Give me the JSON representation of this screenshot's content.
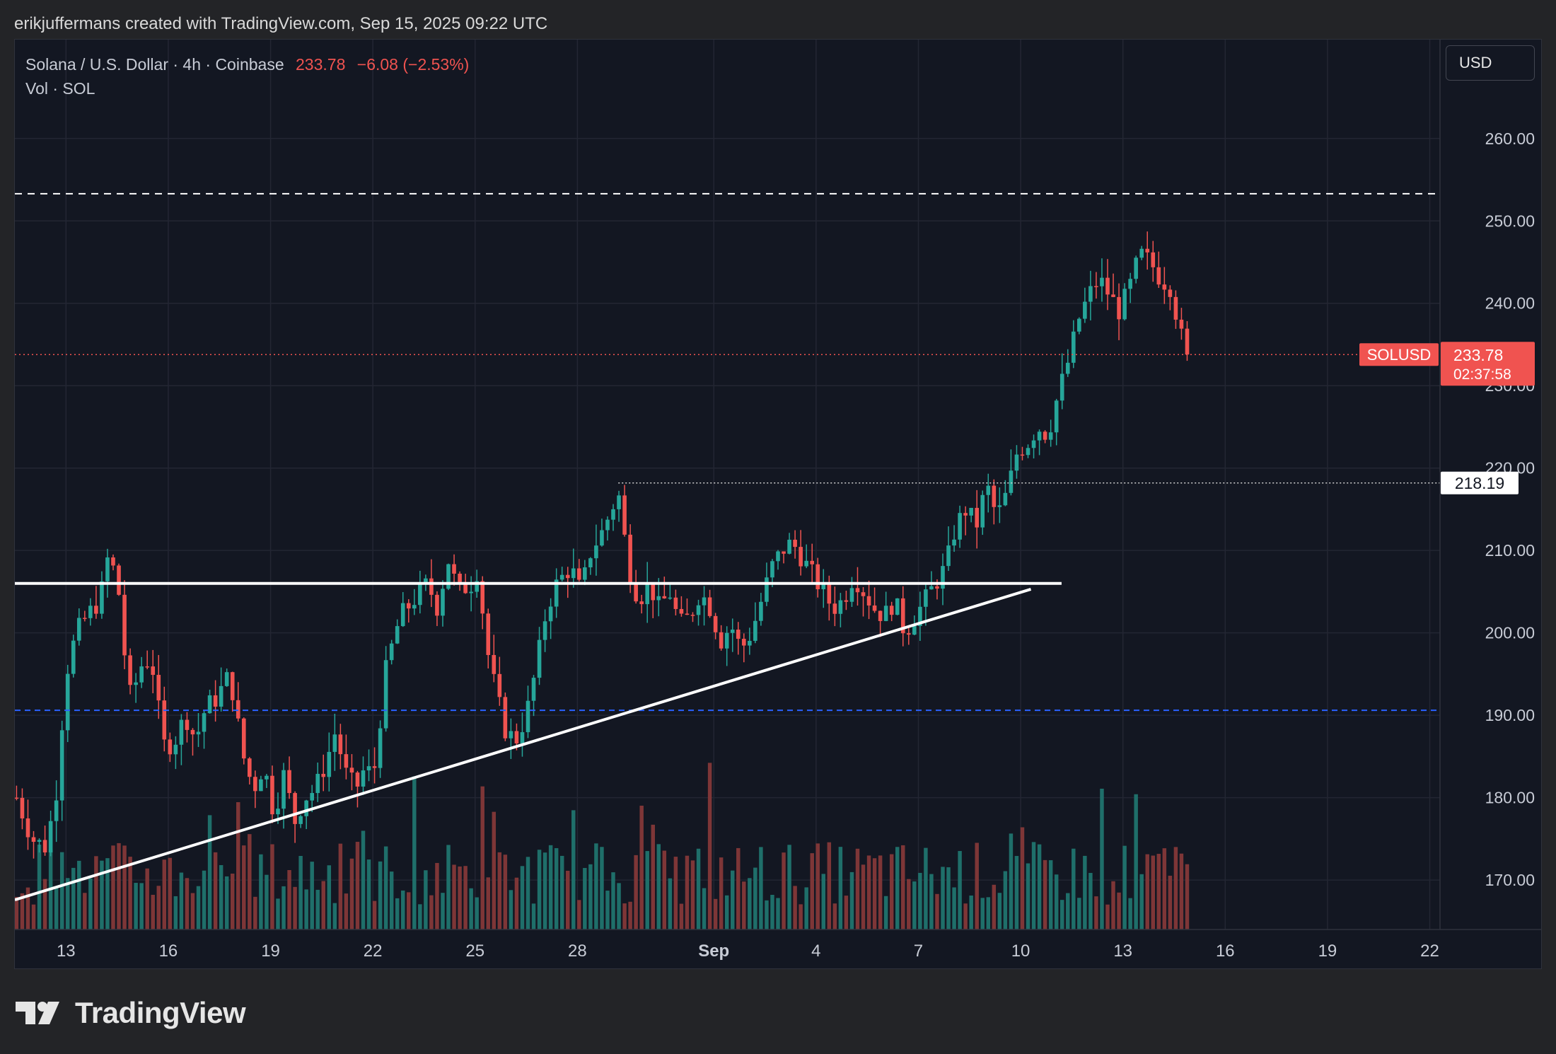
{
  "credit": "erikjuffermans created with TradingView.com, Sep 15, 2025 09:22 UTC",
  "legend": {
    "symbol": "Solana / U.S. Dollar · 4h · Coinbase",
    "price": "233.78",
    "change": "−6.08 (−2.53%)",
    "volume_label": "Vol · SOL"
  },
  "currency_button": "USD",
  "brand": "TradingView",
  "colors": {
    "up": "#26a69a",
    "down": "#f05350",
    "up_volume": "#1f6f6a",
    "down_volume": "#7e3637",
    "background": "#131722",
    "grid": "#232633",
    "trendline": "#ffffff",
    "resistance_dashed": "#ffffff",
    "support_dashed": "#2962ff"
  },
  "chart_data": {
    "type": "candlestick",
    "interval": "4h",
    "y_axis": {
      "min": 164,
      "max": 272,
      "ticks": [
        170,
        180,
        190,
        200,
        210,
        220,
        230,
        240,
        250,
        260
      ],
      "side": "right"
    },
    "x_axis": {
      "labels": [
        {
          "day": 13,
          "text": "13"
        },
        {
          "day": 16,
          "text": "16"
        },
        {
          "day": 19,
          "text": "19"
        },
        {
          "day": 22,
          "text": "22"
        },
        {
          "day": 25,
          "text": "25"
        },
        {
          "day": 28,
          "text": "28"
        },
        {
          "day": 32,
          "text": "Sep",
          "bold": true
        },
        {
          "day": 35,
          "text": "4"
        },
        {
          "day": 38,
          "text": "7"
        },
        {
          "day": 41,
          "text": "10"
        },
        {
          "day": 44,
          "text": "13"
        },
        {
          "day": 47,
          "text": "16"
        },
        {
          "day": 50,
          "text": "19"
        },
        {
          "day": 53,
          "text": "22"
        }
      ],
      "day_min": 11.5,
      "day_max": 53.3
    },
    "anchors": [
      [
        11.55,
        180
      ],
      [
        12.0,
        175
      ],
      [
        12.4,
        174
      ],
      [
        12.7,
        180
      ],
      [
        13.0,
        195
      ],
      [
        13.3,
        200
      ],
      [
        13.6,
        202
      ],
      [
        14.0,
        204
      ],
      [
        14.2,
        209
      ],
      [
        14.5,
        207
      ],
      [
        14.7,
        198
      ],
      [
        14.9,
        192
      ],
      [
        15.2,
        196
      ],
      [
        15.5,
        197
      ],
      [
        15.7,
        191
      ],
      [
        15.9,
        186
      ],
      [
        16.2,
        187
      ],
      [
        16.5,
        190
      ],
      [
        16.8,
        187
      ],
      [
        17.1,
        191
      ],
      [
        17.4,
        192
      ],
      [
        17.8,
        195
      ],
      [
        18.0,
        190
      ],
      [
        18.2,
        185
      ],
      [
        18.5,
        181
      ],
      [
        18.8,
        184
      ],
      [
        19.1,
        178
      ],
      [
        19.4,
        183
      ],
      [
        19.7,
        177
      ],
      [
        20.0,
        180
      ],
      [
        20.3,
        181
      ],
      [
        20.6,
        184
      ],
      [
        20.9,
        188
      ],
      [
        21.2,
        183
      ],
      [
        21.5,
        181
      ],
      [
        21.8,
        184
      ],
      [
        22.0,
        182
      ],
      [
        22.4,
        196
      ],
      [
        22.8,
        202
      ],
      [
        23.2,
        204
      ],
      [
        23.6,
        206
      ],
      [
        23.9,
        203
      ],
      [
        24.2,
        209
      ],
      [
        24.5,
        205
      ],
      [
        24.9,
        206
      ],
      [
        25.1,
        208
      ],
      [
        25.3,
        199
      ],
      [
        25.6,
        193
      ],
      [
        25.9,
        188
      ],
      [
        26.2,
        187
      ],
      [
        26.5,
        190
      ],
      [
        26.8,
        196
      ],
      [
        27.1,
        203
      ],
      [
        27.4,
        206
      ],
      [
        27.8,
        208
      ],
      [
        28.1,
        205
      ],
      [
        28.4,
        210
      ],
      [
        28.7,
        212
      ],
      [
        29.0,
        215
      ],
      [
        29.2,
        217
      ],
      [
        29.5,
        208
      ],
      [
        29.8,
        204
      ],
      [
        30.1,
        206
      ],
      [
        30.4,
        203
      ],
      [
        30.7,
        205
      ],
      [
        31.0,
        201
      ],
      [
        31.3,
        202
      ],
      [
        31.6,
        205
      ],
      [
        31.9,
        203
      ],
      [
        32.2,
        199
      ],
      [
        32.5,
        201
      ],
      [
        32.8,
        198
      ],
      [
        33.1,
        200
      ],
      [
        33.4,
        204
      ],
      [
        33.7,
        208
      ],
      [
        34.0,
        210
      ],
      [
        34.3,
        211
      ],
      [
        34.6,
        209
      ],
      [
        34.9,
        207
      ],
      [
        35.2,
        205
      ],
      [
        35.5,
        203
      ],
      [
        35.8,
        204
      ],
      [
        36.1,
        207
      ],
      [
        36.4,
        205
      ],
      [
        36.7,
        203
      ],
      [
        37.0,
        202
      ],
      [
        37.3,
        204
      ],
      [
        37.6,
        200
      ],
      [
        37.9,
        202
      ],
      [
        38.2,
        204
      ],
      [
        38.5,
        206
      ],
      [
        38.8,
        208
      ],
      [
        39.1,
        213
      ],
      [
        39.4,
        215
      ],
      [
        39.7,
        213
      ],
      [
        40.0,
        218
      ],
      [
        40.3,
        214
      ],
      [
        40.6,
        217
      ],
      [
        40.9,
        222
      ],
      [
        41.2,
        223
      ],
      [
        41.5,
        225
      ],
      [
        41.8,
        224
      ],
      [
        42.1,
        229
      ],
      [
        42.4,
        233
      ],
      [
        42.7,
        238
      ],
      [
        43.0,
        241
      ],
      [
        43.3,
        243
      ],
      [
        43.6,
        241
      ],
      [
        43.9,
        239
      ],
      [
        44.2,
        242
      ],
      [
        44.5,
        246
      ],
      [
        44.8,
        245
      ],
      [
        45.1,
        243
      ],
      [
        45.4,
        242
      ],
      [
        45.7,
        236
      ],
      [
        46.0,
        233.78
      ]
    ],
    "annotations": {
      "resistance_dashed": 253.3,
      "support_dashed": 190.6,
      "horizontal_line": {
        "y": 206.0,
        "day_start": 11.5,
        "day_end": 42.2
      },
      "rising_trendline": {
        "from": [
          11.5,
          167.6
        ],
        "to": [
          41.3,
          205.3
        ]
      },
      "level_218": {
        "y": 218.19,
        "label": "218.19",
        "day_start": 29.2
      },
      "last_price": {
        "y": 233.78,
        "symbol_label": "SOLUSD",
        "price_label": "233.78",
        "countdown": "02:37:58"
      }
    }
  }
}
